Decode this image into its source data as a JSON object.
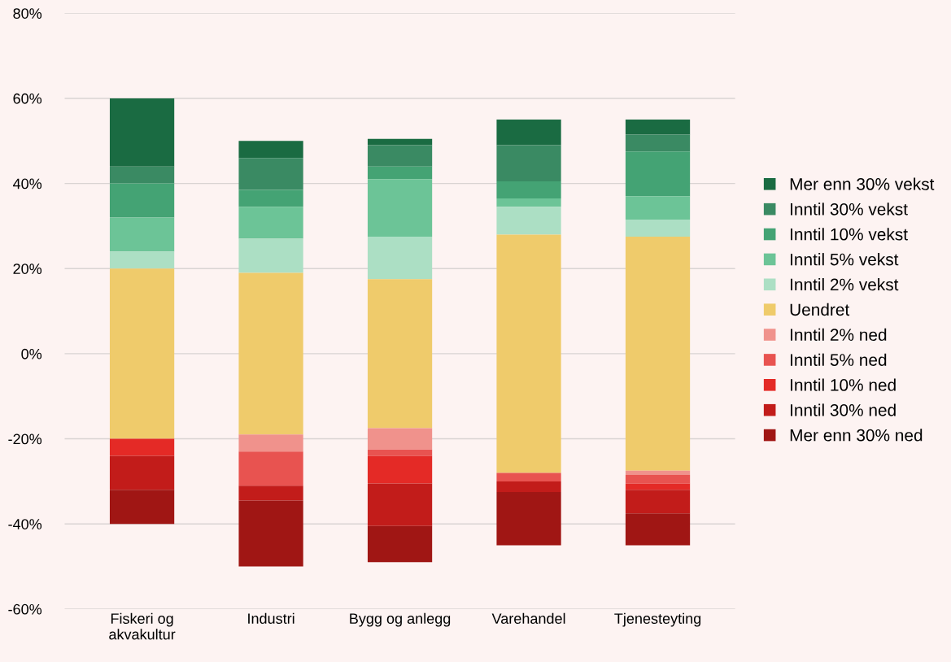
{
  "chart_data": {
    "type": "bar",
    "categories": [
      "Fiskeri og\nakvakultur",
      "Industri",
      "Bygg og anlegg",
      "Varehandel",
      "Tjenesteyting"
    ],
    "series": [
      {
        "name": "Mer enn 30% vekst",
        "color": "#1a6b42",
        "base": [
          44,
          46,
          49,
          49,
          51.5
        ],
        "values": [
          16,
          4,
          1.5,
          6,
          3.5
        ]
      },
      {
        "name": "Inntil 30% vekst",
        "color": "#3a8a63",
        "base": [
          40,
          38.5,
          44,
          40.5,
          47.5
        ],
        "values": [
          4,
          7.5,
          5,
          8.5,
          4
        ]
      },
      {
        "name": "Inntil 10% vekst",
        "color": "#44a374",
        "base": [
          32,
          34.5,
          41,
          36.5,
          37
        ],
        "values": [
          8,
          4,
          3,
          4,
          10.5
        ]
      },
      {
        "name": "Inntil 5% vekst",
        "color": "#6cc497",
        "base": [
          24,
          27,
          27.5,
          34.5,
          31.5
        ],
        "values": [
          8,
          7.5,
          13.5,
          2,
          5.5
        ]
      },
      {
        "name": "Inntil 2% vekst",
        "color": "#acdfc4",
        "base": [
          20,
          19,
          17.5,
          28,
          27.5
        ],
        "values": [
          4,
          8,
          10,
          6.5,
          4
        ]
      },
      {
        "name": "Uendret",
        "color": "#efcb6b",
        "base": [
          -20,
          -19,
          -17.5,
          -28,
          -27.5
        ],
        "values": [
          40,
          38,
          35,
          56,
          55
        ]
      },
      {
        "name": "Inntil 2% ned",
        "color": "#f0928c",
        "base": [
          null,
          -23,
          -22.5,
          null,
          -28.5
        ],
        "values": [
          null,
          4,
          5,
          null,
          1
        ]
      },
      {
        "name": "Inntil 5% ned",
        "color": "#e85350",
        "base": [
          null,
          -31,
          -24,
          -30,
          -30.5
        ],
        "values": [
          null,
          8,
          1.5,
          2,
          2
        ]
      },
      {
        "name": "Inntil 10% ned",
        "color": "#e42a26",
        "base": [
          -24,
          null,
          -30.5,
          null,
          -32
        ],
        "values": [
          4,
          null,
          6.5,
          null,
          1.5
        ]
      },
      {
        "name": "Inntil 30% ned",
        "color": "#c21c1a",
        "base": [
          -32,
          -34.5,
          -40.5,
          -32.5,
          -37.5
        ],
        "values": [
          8,
          3.5,
          10,
          2.5,
          5.5
        ]
      },
      {
        "name": "Mer enn 30% ned",
        "color": "#a01614",
        "base": [
          -40,
          -50,
          -49,
          -45,
          -45
        ],
        "values": [
          8,
          15.5,
          8.5,
          12.5,
          7.5
        ]
      }
    ],
    "ylim": [
      -60,
      80
    ],
    "yticks": [
      {
        "value": -60,
        "label": "-60%"
      },
      {
        "value": -40,
        "label": "-40%"
      },
      {
        "value": -20,
        "label": "-20%"
      },
      {
        "value": 0,
        "label": "0%"
      },
      {
        "value": 20,
        "label": "20%"
      },
      {
        "value": 40,
        "label": "40%"
      },
      {
        "value": 60,
        "label": "60%"
      },
      {
        "value": 80,
        "label": "80%"
      }
    ],
    "grid": "y",
    "legend": "right"
  }
}
